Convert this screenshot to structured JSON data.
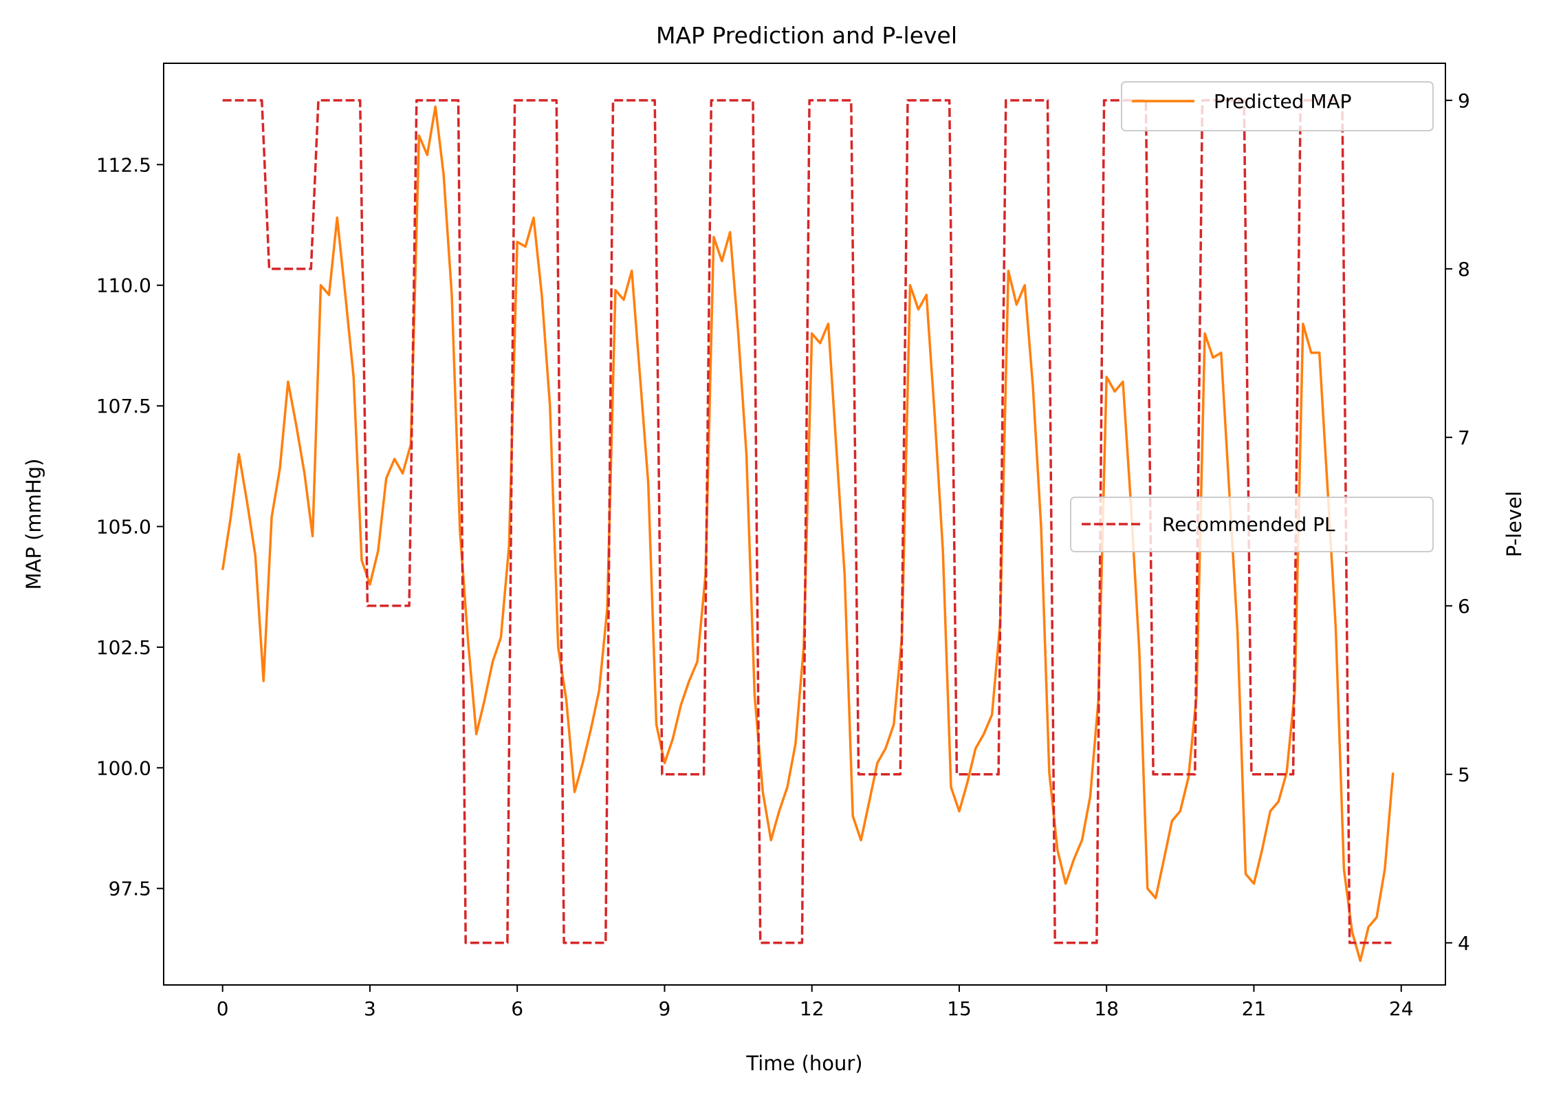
{
  "chart_data": {
    "type": "line",
    "title": "MAP Prediction and P-level",
    "xlabel": "Time (hour)",
    "ylabel": "MAP (mmHg)",
    "y2label": "P-level",
    "xlim": [
      -1.2,
      24.9
    ],
    "ylim": [
      95.5,
      114.6
    ],
    "y2lim": [
      3.75,
      9.22
    ],
    "xticks": [
      "0",
      "3",
      "6",
      "9",
      "12",
      "15",
      "18",
      "21",
      "24"
    ],
    "yticks": [
      "97.5",
      "100.0",
      "102.5",
      "105.0",
      "107.5",
      "110.0",
      "112.5"
    ],
    "y2ticks": [
      "4",
      "5",
      "6",
      "7",
      "8",
      "9"
    ],
    "grid": false,
    "series": [
      {
        "name": "Predicted MAP",
        "axis": "left",
        "color": "#ff7f0e",
        "style": "solid",
        "x": [
          0,
          0.167,
          0.333,
          0.5,
          0.667,
          0.833,
          1.0,
          1.167,
          1.333,
          1.5,
          1.667,
          1.833,
          2.0,
          2.167,
          2.333,
          2.5,
          2.667,
          2.833,
          3.0,
          3.167,
          3.333,
          3.5,
          3.667,
          3.833,
          4.0,
          4.167,
          4.333,
          4.5,
          4.667,
          4.833,
          5.0,
          5.167,
          5.333,
          5.5,
          5.667,
          5.833,
          6.0,
          6.167,
          6.333,
          6.5,
          6.667,
          6.833,
          7.0,
          7.167,
          7.333,
          7.5,
          7.667,
          7.833,
          8.0,
          8.167,
          8.333,
          8.5,
          8.667,
          8.833,
          9.0,
          9.167,
          9.333,
          9.5,
          9.667,
          9.833,
          10.0,
          10.167,
          10.333,
          10.5,
          10.667,
          10.833,
          11.0,
          11.167,
          11.333,
          11.5,
          11.667,
          11.833,
          12.0,
          12.167,
          12.333,
          12.5,
          12.667,
          12.833,
          13.0,
          13.167,
          13.333,
          13.5,
          13.667,
          13.833,
          14.0,
          14.167,
          14.333,
          14.5,
          14.667,
          14.833,
          15.0,
          15.167,
          15.333,
          15.5,
          15.667,
          15.833,
          16.0,
          16.167,
          16.333,
          16.5,
          16.667,
          16.833,
          17.0,
          17.167,
          17.333,
          17.5,
          17.667,
          17.833,
          18.0,
          18.167,
          18.333,
          18.5,
          18.667,
          18.833,
          19.0,
          19.167,
          19.333,
          19.5,
          19.667,
          19.833,
          20.0,
          20.167,
          20.333,
          20.5,
          20.667,
          20.833,
          21.0,
          21.167,
          21.333,
          21.5,
          21.667,
          21.833,
          22.0,
          22.167,
          22.333,
          22.5,
          22.667,
          22.833,
          23.0,
          23.167,
          23.333,
          23.5,
          23.667,
          23.833
        ],
        "values": [
          104.1,
          105.2,
          106.5,
          105.5,
          104.4,
          101.8,
          105.2,
          106.2,
          108.0,
          107.1,
          106.1,
          104.8,
          110.0,
          109.8,
          111.4,
          109.8,
          108.1,
          104.3,
          103.8,
          104.5,
          106.0,
          106.4,
          106.1,
          106.7,
          113.1,
          112.7,
          113.7,
          112.3,
          109.8,
          104.9,
          102.6,
          100.7,
          101.4,
          102.2,
          102.7,
          104.6,
          110.9,
          110.8,
          111.4,
          109.8,
          107.5,
          102.5,
          101.4,
          99.5,
          100.1,
          100.8,
          101.6,
          103.3,
          109.9,
          109.7,
          110.3,
          108.1,
          105.9,
          100.9,
          100.1,
          100.6,
          101.3,
          101.8,
          102.2,
          104.0,
          111.0,
          110.5,
          111.1,
          109.0,
          106.5,
          101.5,
          99.5,
          98.5,
          99.1,
          99.6,
          100.5,
          102.5,
          109.0,
          108.8,
          109.2,
          106.6,
          104.0,
          99.0,
          98.5,
          99.3,
          100.1,
          100.4,
          100.9,
          102.7,
          110.0,
          109.5,
          109.8,
          107.3,
          104.5,
          99.6,
          99.1,
          99.7,
          100.4,
          100.7,
          101.1,
          103.0,
          110.3,
          109.6,
          110.0,
          107.9,
          105.0,
          99.9,
          98.3,
          97.6,
          98.1,
          98.5,
          99.4,
          101.4,
          108.1,
          107.8,
          108.0,
          105.4,
          102.4,
          97.5,
          97.3,
          98.1,
          98.9,
          99.1,
          99.8,
          101.5,
          109.0,
          108.5,
          108.6,
          105.7,
          102.8,
          97.8,
          97.6,
          98.3,
          99.1,
          99.3,
          99.9,
          101.6,
          109.2,
          108.6,
          108.6,
          105.8,
          102.9,
          97.9,
          96.6,
          96.0,
          96.7,
          96.9,
          97.9,
          99.9
        ]
      },
      {
        "name": "Recommended PL",
        "axis": "right",
        "color": "#d62728",
        "style": "dashed",
        "x": [
          0,
          0.8,
          0.95,
          1.8,
          1.95,
          2.8,
          2.95,
          3.8,
          3.95,
          4.8,
          4.95,
          5.8,
          5.95,
          6.8,
          6.95,
          7.8,
          7.95,
          8.8,
          8.95,
          9.8,
          9.95,
          10.8,
          10.95,
          11.8,
          11.95,
          12.8,
          12.95,
          13.8,
          13.95,
          14.8,
          14.95,
          15.8,
          15.95,
          16.8,
          16.95,
          17.8,
          17.95,
          18.8,
          18.95,
          19.8,
          19.95,
          20.8,
          20.95,
          21.8,
          21.95,
          22.8,
          22.95,
          23.8
        ],
        "values": [
          9,
          9,
          8,
          8,
          9,
          9,
          6,
          6,
          9,
          9,
          4,
          4,
          9,
          9,
          4,
          4,
          9,
          9,
          5,
          5,
          9,
          9,
          4,
          4,
          9,
          9,
          5,
          5,
          9,
          9,
          5,
          5,
          9,
          9,
          4,
          4,
          9,
          9,
          5,
          5,
          9,
          9,
          5,
          5,
          9,
          9,
          4,
          4
        ]
      }
    ],
    "legends": [
      {
        "placement": "upper-right",
        "entries": [
          "Predicted MAP"
        ]
      },
      {
        "placement": "center-right",
        "entries": [
          "Recommended PL"
        ]
      }
    ]
  }
}
